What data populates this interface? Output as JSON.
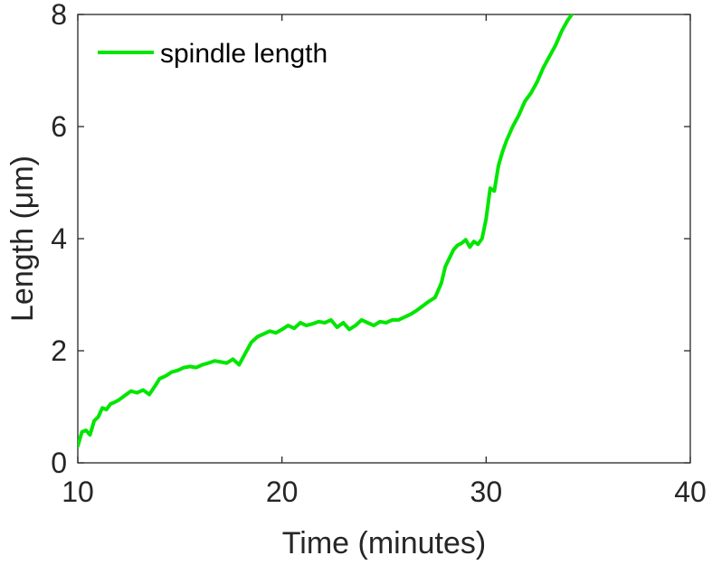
{
  "chart_data": {
    "type": "line",
    "title": "",
    "xlabel": "Time (minutes)",
    "ylabel": "Length (μm)",
    "xlim": [
      10,
      40
    ],
    "ylim": [
      0,
      8
    ],
    "xticks": [
      "10",
      "20",
      "30",
      "40"
    ],
    "yticks": [
      "0",
      "2",
      "4",
      "6",
      "8"
    ],
    "grid": false,
    "legend_position": "top-left",
    "series": [
      {
        "name": "spindle length",
        "color": "#00e600",
        "x": [
          10.0,
          10.2,
          10.4,
          10.6,
          10.8,
          11.0,
          11.2,
          11.4,
          11.6,
          11.8,
          12.0,
          12.3,
          12.6,
          12.9,
          13.2,
          13.5,
          13.8,
          14.0,
          14.3,
          14.6,
          14.9,
          15.2,
          15.5,
          15.8,
          16.1,
          16.4,
          16.7,
          17.0,
          17.3,
          17.6,
          17.9,
          18.2,
          18.5,
          18.8,
          19.1,
          19.4,
          19.7,
          20.0,
          20.3,
          20.6,
          20.9,
          21.2,
          21.5,
          21.8,
          22.1,
          22.4,
          22.7,
          23.0,
          23.3,
          23.6,
          23.9,
          24.2,
          24.5,
          24.8,
          25.1,
          25.4,
          25.7,
          26.0,
          26.3,
          26.6,
          26.9,
          27.2,
          27.5,
          27.8,
          28.0,
          28.2,
          28.4,
          28.6,
          28.8,
          29.0,
          29.2,
          29.4,
          29.6,
          29.8,
          30.0,
          30.2,
          30.4,
          30.6,
          30.8,
          31.0,
          31.3,
          31.6,
          31.9,
          32.2,
          32.5,
          32.8,
          33.1,
          33.4,
          33.7,
          34.0,
          34.3,
          34.5
        ],
        "y": [
          0.3,
          0.55,
          0.58,
          0.5,
          0.75,
          0.82,
          0.98,
          0.95,
          1.05,
          1.08,
          1.12,
          1.2,
          1.28,
          1.25,
          1.3,
          1.22,
          1.38,
          1.5,
          1.55,
          1.62,
          1.65,
          1.7,
          1.72,
          1.7,
          1.75,
          1.78,
          1.82,
          1.8,
          1.78,
          1.85,
          1.75,
          1.95,
          2.15,
          2.25,
          2.3,
          2.35,
          2.32,
          2.38,
          2.45,
          2.4,
          2.5,
          2.45,
          2.48,
          2.52,
          2.5,
          2.55,
          2.42,
          2.5,
          2.38,
          2.45,
          2.55,
          2.5,
          2.45,
          2.52,
          2.5,
          2.55,
          2.55,
          2.6,
          2.65,
          2.72,
          2.8,
          2.88,
          2.95,
          3.2,
          3.5,
          3.65,
          3.8,
          3.88,
          3.92,
          3.98,
          3.85,
          3.95,
          3.9,
          4.0,
          4.35,
          4.9,
          4.85,
          5.3,
          5.55,
          5.75,
          6.0,
          6.2,
          6.45,
          6.6,
          6.8,
          7.05,
          7.25,
          7.45,
          7.7,
          7.9,
          8.05,
          8.1
        ]
      }
    ]
  }
}
